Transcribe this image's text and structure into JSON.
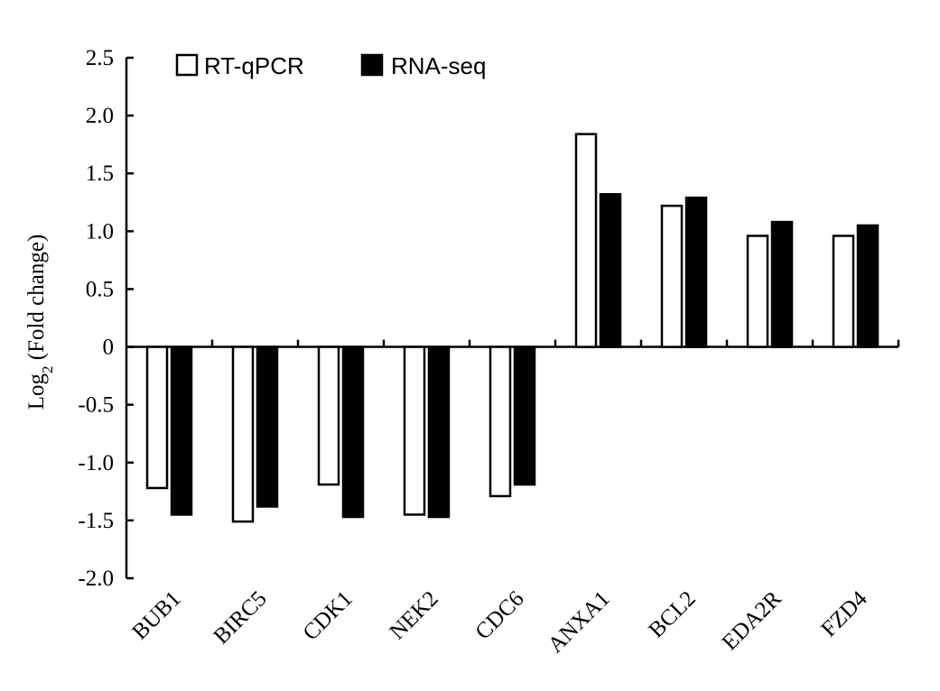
{
  "chart_data": {
    "type": "bar",
    "ylabel": "Log2 (Fold change)",
    "ylabel_base": "Log",
    "ylabel_sub": "2",
    "ylabel_rest": " (Fold change)",
    "ylim": [
      -2.0,
      2.5
    ],
    "yticks": [
      "2.5",
      "2.0",
      "1.5",
      "1.0",
      "0.5",
      "0",
      "-0.5",
      "-1.0",
      "-1.5",
      "-2.0"
    ],
    "ytick_values": [
      2.5,
      2.0,
      1.5,
      1.0,
      0.5,
      0,
      -0.5,
      -1.0,
      -1.5,
      -2.0
    ],
    "grid": false,
    "legend_position": "top-left",
    "categories": [
      "BUB1",
      "BIRC5",
      "CDK1",
      "NEK2",
      "CDC6",
      "ANXA1",
      "BCL2",
      "EDA2R",
      "FZD4"
    ],
    "series": [
      {
        "name": "RT-qPCR",
        "fill": "#ffffff",
        "stroke": "#000000",
        "values": [
          -1.22,
          -1.51,
          -1.19,
          -1.45,
          -1.29,
          1.84,
          1.22,
          0.96,
          0.96
        ]
      },
      {
        "name": "RNA-seq",
        "fill": "#000000",
        "stroke": "#000000",
        "values": [
          -1.45,
          -1.38,
          -1.47,
          -1.47,
          -1.19,
          1.32,
          1.29,
          1.08,
          1.05
        ]
      }
    ]
  }
}
